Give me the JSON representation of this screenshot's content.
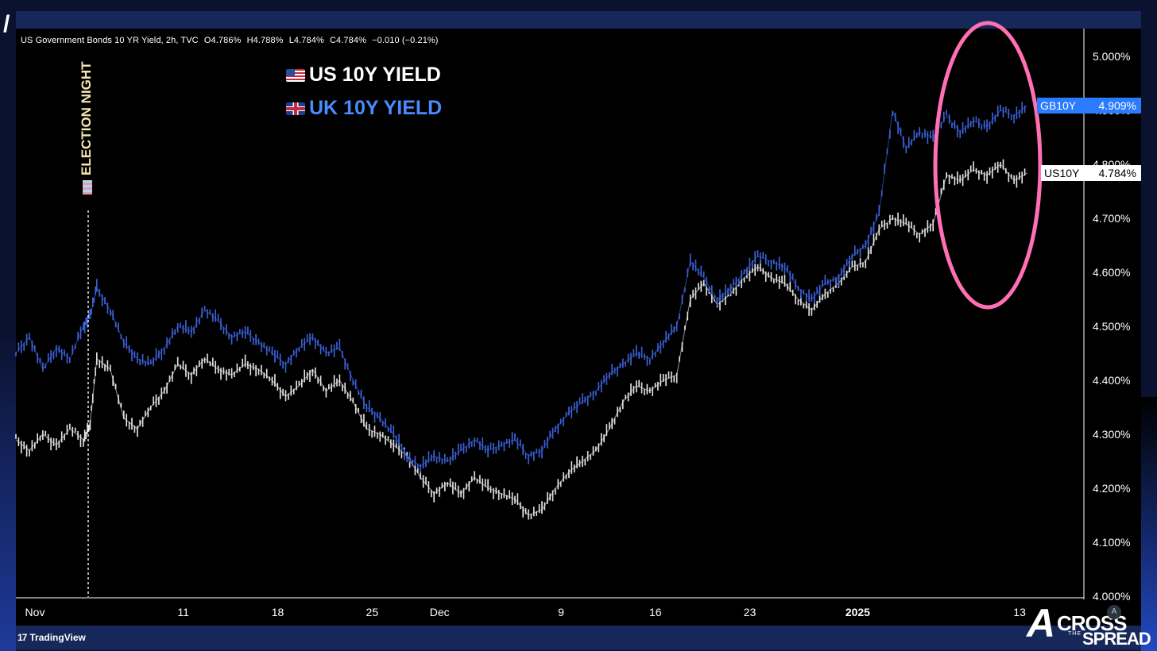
{
  "header": {
    "ohlc_title": "US Government Bonds 10 YR Yield, 2h, TVC",
    "open": "O4.786%",
    "high": "H4.788%",
    "low": "L4.784%",
    "close": "C4.784%",
    "change": "−0.010 (−0.21%)"
  },
  "legend": {
    "us_label": "US 10Y YIELD",
    "uk_label": "UK 10Y YIELD"
  },
  "annotation": {
    "election": "ELECTION NIGHT"
  },
  "price_tags": {
    "gb_symbol": "GB10Y",
    "gb_value": "4.909%",
    "us_symbol": "US10Y",
    "us_value": "4.784%"
  },
  "footer": {
    "tradingview": "TradingView",
    "brand_line1": "CROSS",
    "brand_the": "THE",
    "brand_line2": "SPREAD",
    "badge": "A"
  },
  "colors": {
    "us_series": "#e8e8e8",
    "uk_series": "#3d63e0",
    "highlight_ellipse": "#ff6fb4",
    "axis": "#ffffff",
    "gb_tag": "#2b7bff"
  },
  "chart_data": {
    "type": "line",
    "title": "",
    "xlabel": "",
    "ylabel": "",
    "ylim": [
      4.0,
      5.05
    ],
    "y_ticks": [
      "4.000%",
      "4.100%",
      "4.200%",
      "4.300%",
      "4.400%",
      "4.500%",
      "4.600%",
      "4.700%",
      "4.800%",
      "4.900%",
      "5.000%"
    ],
    "x_ticks": [
      "Nov",
      "11",
      "18",
      "25",
      "Dec",
      "9",
      "16",
      "23",
      "2025",
      "13"
    ],
    "x_tick_days": [
      0,
      11,
      18,
      25,
      30,
      39,
      46,
      53,
      61,
      73
    ],
    "x_range_days": [
      0,
      76
    ],
    "election_night_day": 5.5,
    "grid": false,
    "legend_position": "top-left",
    "series": [
      {
        "name": "US 10Y YIELD",
        "x_days": [
          0,
          1,
          2,
          3,
          4,
          5,
          5.5,
          6,
          7,
          8,
          9,
          10,
          11,
          12,
          13,
          14,
          15,
          16,
          17,
          18,
          19,
          20,
          21,
          22,
          23,
          24,
          25,
          26,
          27,
          28,
          29,
          30,
          31,
          32,
          33,
          34,
          35,
          36,
          37,
          38,
          39,
          40,
          41,
          42,
          43,
          44,
          45,
          46,
          47,
          48,
          49,
          50,
          51,
          52,
          53,
          54,
          55,
          56,
          57,
          58,
          59,
          60,
          61,
          62,
          63,
          64,
          65,
          66,
          67,
          68,
          69,
          70,
          71,
          72,
          73,
          74,
          75
        ],
        "values": [
          4.29,
          4.27,
          4.3,
          4.28,
          4.31,
          4.29,
          4.32,
          4.44,
          4.42,
          4.33,
          4.31,
          4.35,
          4.38,
          4.43,
          4.41,
          4.44,
          4.42,
          4.41,
          4.43,
          4.42,
          4.4,
          4.37,
          4.39,
          4.42,
          4.38,
          4.4,
          4.36,
          4.31,
          4.3,
          4.28,
          4.26,
          4.22,
          4.19,
          4.21,
          4.19,
          4.22,
          4.2,
          4.19,
          4.18,
          4.15,
          4.16,
          4.2,
          4.23,
          4.25,
          4.27,
          4.31,
          4.36,
          4.39,
          4.38,
          4.4,
          4.41,
          4.55,
          4.58,
          4.54,
          4.56,
          4.59,
          4.61,
          4.59,
          4.58,
          4.55,
          4.53,
          4.56,
          4.58,
          4.61,
          4.62,
          4.68,
          4.7,
          4.69,
          4.67,
          4.69,
          4.78,
          4.77,
          4.79,
          4.78,
          4.8,
          4.77,
          4.784
        ]
      },
      {
        "name": "UK 10Y YIELD",
        "x_days": [
          0,
          1,
          2,
          3,
          4,
          5,
          5.5,
          6,
          7,
          8,
          9,
          10,
          11,
          12,
          13,
          14,
          15,
          16,
          17,
          18,
          19,
          20,
          21,
          22,
          23,
          24,
          25,
          26,
          27,
          28,
          29,
          30,
          31,
          32,
          33,
          34,
          35,
          36,
          37,
          38,
          39,
          40,
          41,
          42,
          43,
          44,
          45,
          46,
          47,
          48,
          49,
          50,
          51,
          52,
          53,
          54,
          55,
          56,
          57,
          58,
          59,
          60,
          61,
          62,
          63,
          64,
          65,
          66,
          67,
          68,
          69,
          70,
          71,
          72,
          73,
          74,
          75
        ],
        "values": [
          4.45,
          4.48,
          4.42,
          4.46,
          4.44,
          4.5,
          4.52,
          4.57,
          4.53,
          4.47,
          4.44,
          4.43,
          4.46,
          4.5,
          4.49,
          4.53,
          4.51,
          4.48,
          4.49,
          4.47,
          4.45,
          4.43,
          4.46,
          4.48,
          4.45,
          4.46,
          4.4,
          4.35,
          4.33,
          4.3,
          4.26,
          4.24,
          4.26,
          4.25,
          4.27,
          4.29,
          4.27,
          4.28,
          4.29,
          4.26,
          4.27,
          4.31,
          4.34,
          4.36,
          4.38,
          4.41,
          4.43,
          4.45,
          4.44,
          4.47,
          4.5,
          4.62,
          4.59,
          4.55,
          4.57,
          4.6,
          4.63,
          4.62,
          4.61,
          4.57,
          4.55,
          4.58,
          4.59,
          4.63,
          4.65,
          4.71,
          4.9,
          4.83,
          4.86,
          4.85,
          4.89,
          4.86,
          4.88,
          4.87,
          4.9,
          4.89,
          4.909
        ]
      }
    ]
  }
}
